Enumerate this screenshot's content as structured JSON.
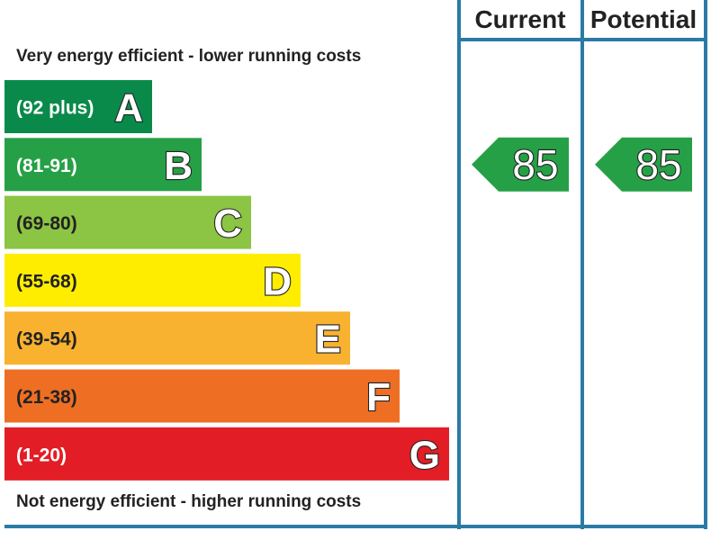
{
  "chart_data": {
    "type": "bar",
    "headers": {
      "current": "Current",
      "potential": "Potential"
    },
    "top_caption": "Very energy efficient - lower running costs",
    "bottom_caption": "Not energy efficient - higher running costs",
    "bands": [
      {
        "letter": "A",
        "range": "(92 plus)",
        "color": "#0a8a4a",
        "text_color": "#ffffff"
      },
      {
        "letter": "B",
        "range": "(81-91)",
        "color": "#26a046",
        "text_color": "#ffffff"
      },
      {
        "letter": "C",
        "range": "(69-80)",
        "color": "#8cc444",
        "text_color": "#222222"
      },
      {
        "letter": "D",
        "range": "(55-68)",
        "color": "#ffed00",
        "text_color": "#222222"
      },
      {
        "letter": "E",
        "range": "(39-54)",
        "color": "#f8b230",
        "text_color": "#222222"
      },
      {
        "letter": "F",
        "range": "(21-38)",
        "color": "#ee6f24",
        "text_color": "#222222"
      },
      {
        "letter": "G",
        "range": "(1-20)",
        "color": "#e31d25",
        "text_color": "#ffffff"
      }
    ],
    "current": {
      "value": 85,
      "band": "B",
      "label": "85"
    },
    "potential": {
      "value": 85,
      "band": "B",
      "label": "85"
    },
    "border_color": "#2a7aa6"
  }
}
